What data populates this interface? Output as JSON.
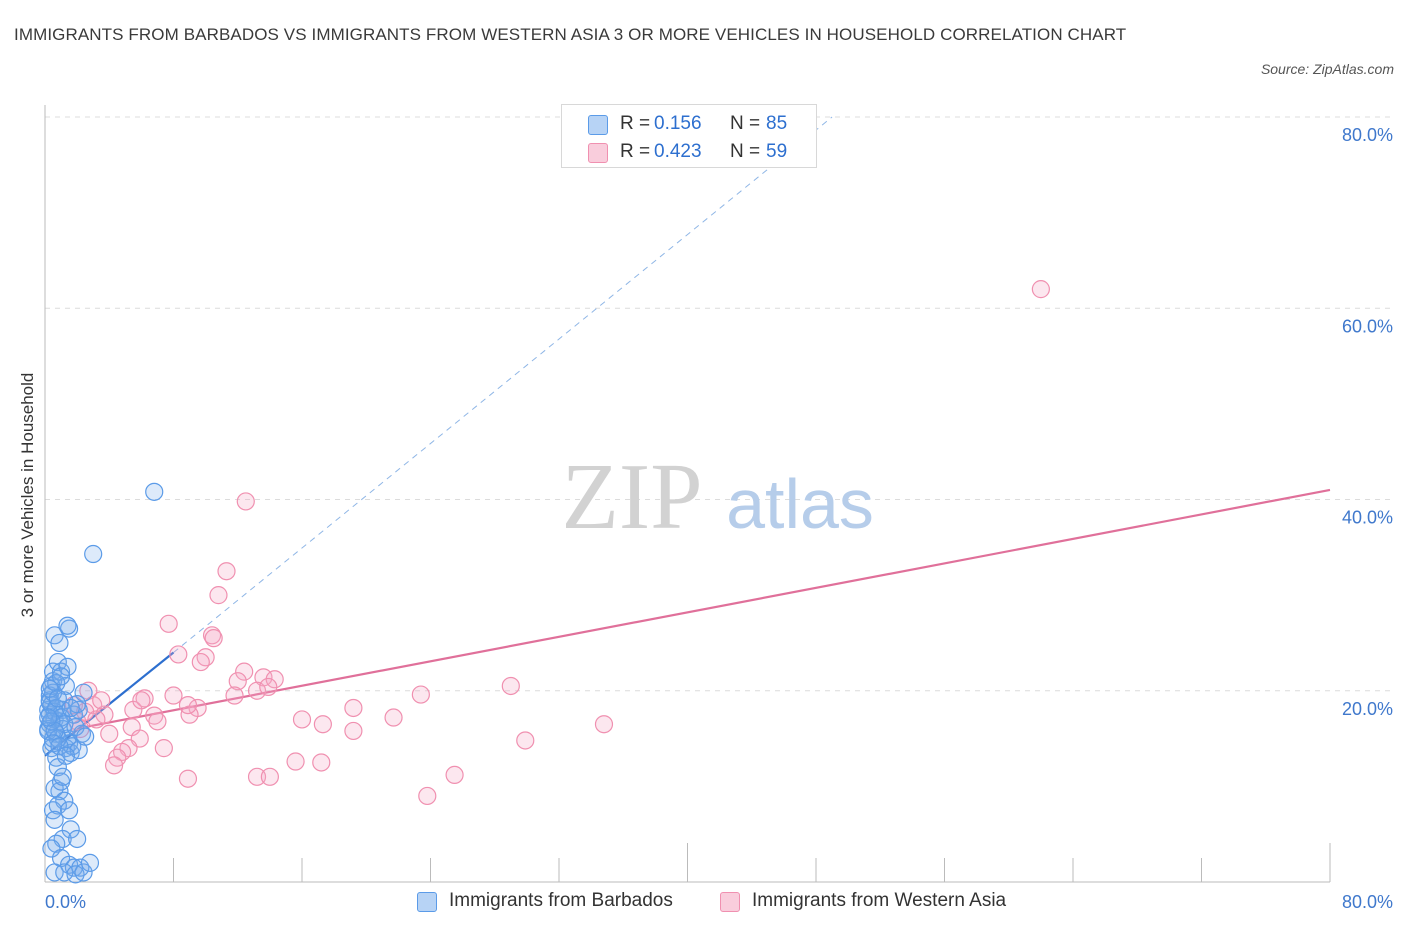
{
  "header": {
    "title": "IMMIGRANTS FROM BARBADOS VS IMMIGRANTS FROM WESTERN ASIA 3 OR MORE VEHICLES IN HOUSEHOLD CORRELATION CHART",
    "source": "Source: ZipAtlas.com"
  },
  "legend": {
    "r_label": "R =",
    "n_label": "N =",
    "series": [
      {
        "r": "0.156",
        "n": "85"
      },
      {
        "r": "0.423",
        "n": "59"
      }
    ]
  },
  "watermark": {
    "zip": "ZIP",
    "atlas": "atlas"
  },
  "chart_data": {
    "type": "scatter",
    "title": "IMMIGRANTS FROM BARBADOS VS IMMIGRANTS FROM WESTERN ASIA 3 OR MORE VEHICLES IN HOUSEHOLD CORRELATION CHART",
    "xlabel": "",
    "ylabel": "3 or more Vehicles in Household",
    "xlim": [
      0,
      80
    ],
    "ylim": [
      0,
      80
    ],
    "x_tick_labels": [
      "0.0%",
      "80.0%"
    ],
    "y_ticks": [
      20,
      40,
      60,
      80
    ],
    "y_tick_labels": [
      "20.0%",
      "40.0%",
      "60.0%",
      "80.0%"
    ],
    "grid": true,
    "colors": {
      "barbados": "#5b9be8",
      "western_asia": "#f090b0",
      "barbados_line": "#2d6fcf",
      "western_asia_line": "#e0709a"
    },
    "series": [
      {
        "name": "Immigrants from Barbados",
        "r": 0.156,
        "n": 85,
        "trend": {
          "x": [
            0,
            8
          ],
          "y": [
            13.2,
            24.0
          ]
        },
        "trend_extended": {
          "x": [
            8,
            49
          ],
          "y": [
            24.0,
            80.0
          ]
        },
        "points": [
          [
            0.2,
            18.0
          ],
          [
            0.3,
            16.5
          ],
          [
            0.4,
            20.5
          ],
          [
            0.5,
            22.0
          ],
          [
            0.6,
            17.0
          ],
          [
            0.7,
            15.5
          ],
          [
            0.3,
            19.5
          ],
          [
            0.5,
            21.0
          ],
          [
            0.8,
            23.0
          ],
          [
            0.4,
            14.0
          ],
          [
            0.6,
            25.8
          ],
          [
            0.9,
            25.0
          ],
          [
            1.0,
            22.0
          ],
          [
            1.2,
            19.0
          ],
          [
            1.4,
            22.5
          ],
          [
            1.1,
            18.0
          ],
          [
            1.3,
            20.5
          ],
          [
            0.2,
            16.0
          ],
          [
            0.3,
            17.5
          ],
          [
            0.5,
            15.0
          ],
          [
            0.7,
            13.0
          ],
          [
            0.8,
            12.0
          ],
          [
            0.9,
            9.5
          ],
          [
            0.6,
            9.8
          ],
          [
            1.0,
            10.5
          ],
          [
            1.2,
            8.5
          ],
          [
            0.5,
            7.5
          ],
          [
            0.8,
            8.0
          ],
          [
            1.5,
            7.5
          ],
          [
            0.6,
            6.5
          ],
          [
            1.6,
            5.5
          ],
          [
            1.1,
            4.5
          ],
          [
            2.0,
            4.5
          ],
          [
            0.7,
            4.0
          ],
          [
            0.4,
            3.5
          ],
          [
            1.0,
            2.5
          ],
          [
            1.5,
            1.8
          ],
          [
            1.8,
            1.5
          ],
          [
            2.2,
            1.5
          ],
          [
            0.6,
            1.0
          ],
          [
            1.2,
            1.0
          ],
          [
            1.9,
            0.8
          ],
          [
            2.4,
            1.0
          ],
          [
            2.8,
            2.0
          ],
          [
            1.5,
            26.5
          ],
          [
            1.4,
            26.8
          ],
          [
            2.4,
            19.8
          ],
          [
            1.8,
            17.5
          ],
          [
            2.1,
            18.0
          ],
          [
            0.3,
            19.0
          ],
          [
            0.4,
            18.5
          ],
          [
            0.6,
            17.8
          ],
          [
            0.9,
            16.8
          ],
          [
            1.1,
            16.0
          ],
          [
            1.4,
            15.0
          ],
          [
            1.3,
            14.0
          ],
          [
            1.6,
            13.5
          ],
          [
            1.5,
            14.5
          ],
          [
            0.2,
            15.8
          ],
          [
            0.3,
            18.8
          ],
          [
            0.5,
            19.8
          ],
          [
            0.7,
            18.2
          ],
          [
            1.0,
            17.2
          ],
          [
            1.2,
            16.5
          ],
          [
            1.7,
            14.2
          ],
          [
            2.1,
            13.8
          ],
          [
            2.3,
            15.5
          ],
          [
            0.8,
            15.0
          ],
          [
            0.4,
            16.8
          ],
          [
            0.6,
            15.8
          ],
          [
            1.9,
            16.2
          ],
          [
            2.5,
            15.2
          ],
          [
            0.2,
            17.2
          ],
          [
            0.5,
            14.5
          ],
          [
            0.9,
            14.2
          ],
          [
            1.3,
            13.2
          ],
          [
            2.0,
            18.6
          ],
          [
            1.6,
            18.2
          ],
          [
            0.7,
            20.8
          ],
          [
            1.0,
            21.5
          ],
          [
            0.3,
            20.2
          ],
          [
            0.8,
            19.2
          ],
          [
            3.0,
            34.3
          ],
          [
            6.8,
            40.8
          ],
          [
            1.1,
            11.0
          ]
        ]
      },
      {
        "name": "Immigrants from Western Asia",
        "r": 0.423,
        "n": 59,
        "trend": {
          "x": [
            2.5,
            80
          ],
          "y": [
            16.2,
            41.0
          ]
        },
        "points": [
          [
            62,
            62.0
          ],
          [
            12.5,
            39.8
          ],
          [
            11.3,
            32.5
          ],
          [
            10.8,
            30.0
          ],
          [
            7.7,
            27.0
          ],
          [
            10.4,
            25.8
          ],
          [
            10.5,
            25.5
          ],
          [
            8.3,
            23.8
          ],
          [
            10.0,
            23.5
          ],
          [
            12.4,
            22.0
          ],
          [
            13.6,
            21.4
          ],
          [
            12.0,
            21.0
          ],
          [
            14.3,
            21.2
          ],
          [
            29.0,
            20.5
          ],
          [
            13.2,
            20.0
          ],
          [
            13.9,
            20.4
          ],
          [
            8.0,
            19.5
          ],
          [
            6.2,
            19.2
          ],
          [
            23.4,
            19.6
          ],
          [
            9.5,
            18.2
          ],
          [
            19.2,
            18.2
          ],
          [
            2.7,
            20.0
          ],
          [
            3.0,
            18.5
          ],
          [
            5.5,
            18.0
          ],
          [
            6.8,
            17.4
          ],
          [
            9.0,
            17.5
          ],
          [
            7.0,
            16.8
          ],
          [
            16.0,
            17.0
          ],
          [
            21.7,
            17.2
          ],
          [
            3.7,
            17.5
          ],
          [
            17.3,
            16.5
          ],
          [
            34.8,
            16.5
          ],
          [
            5.4,
            16.2
          ],
          [
            2.0,
            16.8
          ],
          [
            19.2,
            15.8
          ],
          [
            1.8,
            18.5
          ],
          [
            2.5,
            17.8
          ],
          [
            5.9,
            15.0
          ],
          [
            29.9,
            14.8
          ],
          [
            5.2,
            14.0
          ],
          [
            4.8,
            13.6
          ],
          [
            7.4,
            14.0
          ],
          [
            4.5,
            13.0
          ],
          [
            17.2,
            12.5
          ],
          [
            15.6,
            12.6
          ],
          [
            4.3,
            12.2
          ],
          [
            25.5,
            11.2
          ],
          [
            8.9,
            10.8
          ],
          [
            13.2,
            11.0
          ],
          [
            14.0,
            11.0
          ],
          [
            23.8,
            9.0
          ],
          [
            3.2,
            17.0
          ],
          [
            2.2,
            16.0
          ],
          [
            4.0,
            15.5
          ],
          [
            6.0,
            19.0
          ],
          [
            11.8,
            19.5
          ],
          [
            3.5,
            19.0
          ],
          [
            9.7,
            23.0
          ],
          [
            8.9,
            18.5
          ]
        ]
      }
    ]
  }
}
